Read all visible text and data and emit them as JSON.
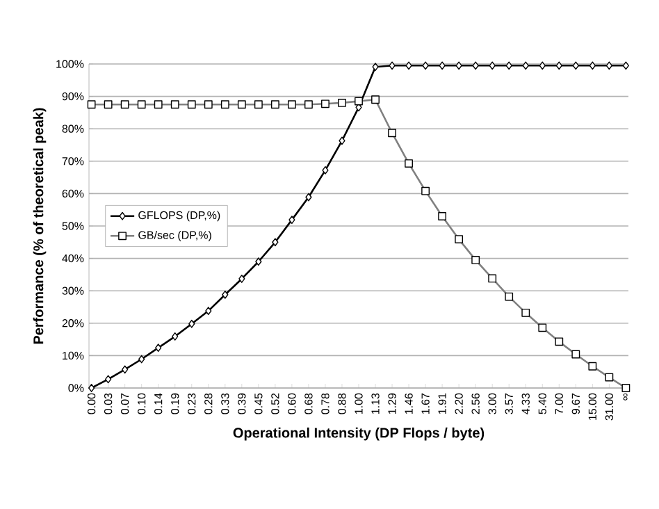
{
  "chart_data": {
    "type": "line",
    "xlabel": "Operational Intensity (DP Flops / byte)",
    "ylabel": "Performance (% of theoretical peak)",
    "categories": [
      "0.00",
      "0.03",
      "0.07",
      "0.10",
      "0.14",
      "0.19",
      "0.23",
      "0.28",
      "0.33",
      "0.39",
      "0.45",
      "0.52",
      "0.60",
      "0.68",
      "0.78",
      "0.88",
      "1.00",
      "1.13",
      "1.29",
      "1.46",
      "1.67",
      "1.91",
      "2.20",
      "2.56",
      "3.00",
      "3.57",
      "4.33",
      "5.40",
      "7.00",
      "9.67",
      "15.00",
      "31.00",
      "∞"
    ],
    "series": [
      {
        "name": "GFLOPS (DP,%)",
        "color": "#000000",
        "marker": "diamond",
        "values": [
          0,
          2.7,
          5.7,
          8.9,
          12.4,
          15.9,
          19.8,
          23.8,
          28.8,
          33.7,
          39.0,
          45.0,
          51.9,
          58.9,
          67.2,
          76.3,
          86.6,
          99.1,
          99.5,
          99.5,
          99.5,
          99.5,
          99.5,
          99.5,
          99.5,
          99.5,
          99.5,
          99.5,
          99.5,
          99.5,
          99.5,
          99.5,
          99.5
        ]
      },
      {
        "name": "GB/sec (DP,%)",
        "color": "#808080",
        "marker": "square",
        "values": [
          87.5,
          87.5,
          87.5,
          87.5,
          87.5,
          87.5,
          87.5,
          87.5,
          87.5,
          87.5,
          87.5,
          87.5,
          87.5,
          87.5,
          87.7,
          88.0,
          88.5,
          89.0,
          78.7,
          69.3,
          60.8,
          53.0,
          45.9,
          39.5,
          33.8,
          28.2,
          23.2,
          18.6,
          14.3,
          10.4,
          6.7,
          3.3,
          0
        ]
      }
    ],
    "ylim": [
      0,
      100
    ],
    "yticks": [
      {
        "value": 0,
        "label": "0%"
      },
      {
        "value": 10,
        "label": "10%"
      },
      {
        "value": 20,
        "label": "20%"
      },
      {
        "value": 30,
        "label": "30%"
      },
      {
        "value": 40,
        "label": "40%"
      },
      {
        "value": 50,
        "label": "50%"
      },
      {
        "value": 60,
        "label": "60%"
      },
      {
        "value": 70,
        "label": "70%"
      },
      {
        "value": 80,
        "label": "80%"
      },
      {
        "value": 90,
        "label": "90%"
      },
      {
        "value": 100,
        "label": "100%"
      }
    ],
    "grid": "y",
    "legend": "left",
    "line_style": "solid"
  }
}
